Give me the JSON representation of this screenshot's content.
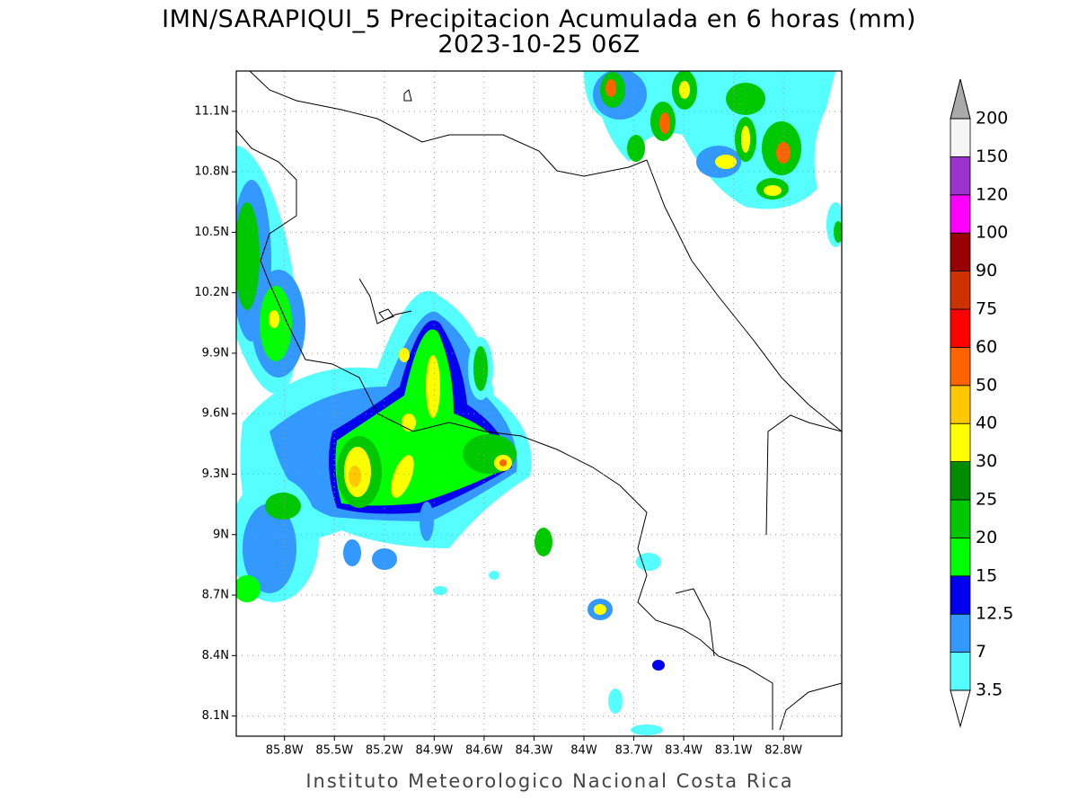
{
  "map": {
    "title": "IMN/SARAPIQUI_5 Precipitacion Acumulada en 6 horas (mm)",
    "subtitle": "2023-10-25 06Z",
    "footer": "Instituto Meteorologico Nacional Costa Rica",
    "xlim": [
      -86.09,
      -82.45
    ],
    "ylim": [
      8.0,
      11.3
    ],
    "xticks": [
      {
        "value": -85.8,
        "label": "85.8W"
      },
      {
        "value": -85.5,
        "label": "85.5W"
      },
      {
        "value": -85.2,
        "label": "85.2W"
      },
      {
        "value": -84.9,
        "label": "84.9W"
      },
      {
        "value": -84.6,
        "label": "84.6W"
      },
      {
        "value": -84.3,
        "label": "84.3W"
      },
      {
        "value": -84,
        "label": "84W"
      },
      {
        "value": -83.7,
        "label": "83.7W"
      },
      {
        "value": -83.4,
        "label": "83.4W"
      },
      {
        "value": -83.1,
        "label": "83.1W"
      },
      {
        "value": -82.8,
        "label": "82.8W"
      }
    ],
    "yticks": [
      {
        "value": 11.1,
        "label": "11.1N"
      },
      {
        "value": 10.8,
        "label": "10.8N"
      },
      {
        "value": 10.5,
        "label": "10.5N"
      },
      {
        "value": 10.2,
        "label": "10.2N"
      },
      {
        "value": 9.9,
        "label": "9.9N"
      },
      {
        "value": 9.6,
        "label": "9.6N"
      },
      {
        "value": 9.3,
        "label": "9.3N"
      },
      {
        "value": 9,
        "label": "9N"
      },
      {
        "value": 8.7,
        "label": "8.7N"
      },
      {
        "value": 8.4,
        "label": "8.4N"
      },
      {
        "value": 8.1,
        "label": "8.1N"
      }
    ],
    "grid": true,
    "colorbar": {
      "levels": [
        3.5,
        7,
        12.5,
        15,
        20,
        25,
        30,
        40,
        50,
        60,
        75,
        90,
        100,
        120,
        150,
        200
      ],
      "colors": [
        "#55ffff",
        "#3399ff",
        "#0000ee",
        "#00ff00",
        "#00c800",
        "#008c00",
        "#ffff00",
        "#ffc800",
        "#ff6400",
        "#ff0000",
        "#cc3300",
        "#990000",
        "#ff00ff",
        "#9933cc",
        "#f5f5f5"
      ],
      "over_color": "#aaaaaa",
      "under_color": "#ffffff"
    }
  }
}
